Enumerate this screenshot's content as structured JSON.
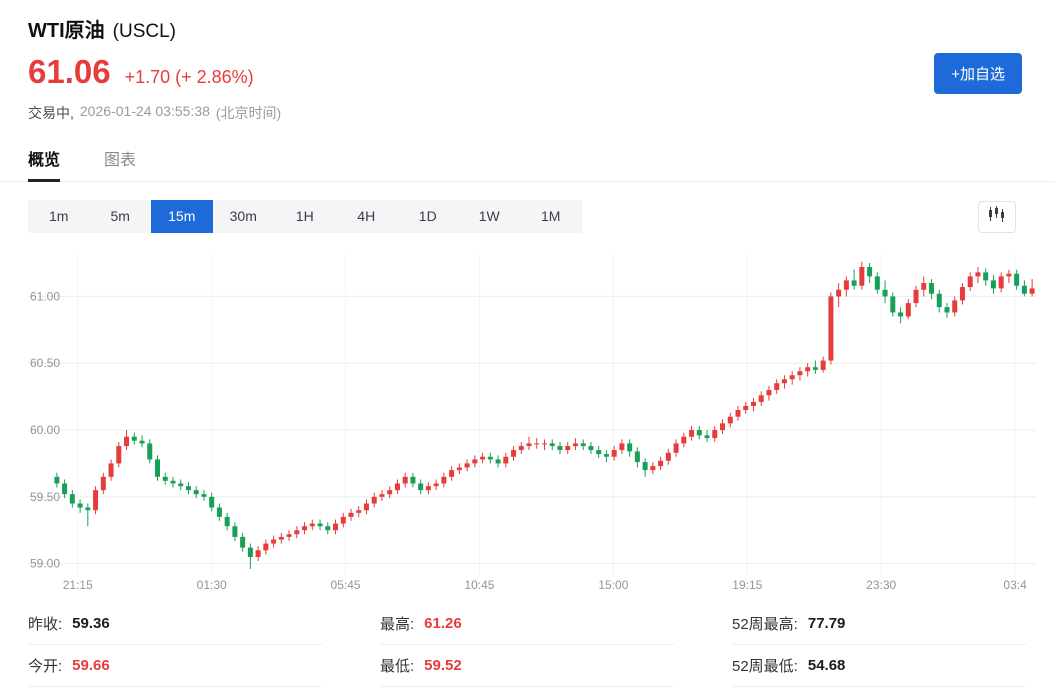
{
  "header": {
    "title": "WTI原油",
    "symbol": "(USCL)",
    "price": "61.06",
    "change": "+1.70 (+ 2.86%)",
    "status": "交易中,",
    "datetime": "2026-01-24 03:55:38",
    "timezone": "(北京时间)",
    "watchlist_button": "+加自选"
  },
  "tabs": [
    {
      "label": "概览",
      "active": true
    },
    {
      "label": "图表",
      "active": false
    }
  ],
  "intervals": {
    "items": [
      "1m",
      "5m",
      "15m",
      "30m",
      "1H",
      "4H",
      "1D",
      "1W",
      "1M"
    ],
    "active": "15m"
  },
  "colors": {
    "accent_blue": "#1f6ad9",
    "up_red": "#e63c3c",
    "down_green": "#18a058",
    "text_gray": "#8f959e"
  },
  "chart_data": {
    "type": "candlestick",
    "symbol": "WTI原油 (USCL)",
    "interval": "15m",
    "y_ticks": [
      59.0,
      59.5,
      60.0,
      60.5,
      61.0
    ],
    "y_range": [
      58.9,
      61.31
    ],
    "grid": true,
    "up_color": "#e63c3c",
    "down_color": "#18a058",
    "x_labels": [
      {
        "label": "21:15",
        "index": 2.7
      },
      {
        "label": "01:30",
        "index": 20.0
      },
      {
        "label": "05:45",
        "index": 37.3
      },
      {
        "label": "10:45",
        "index": 54.6
      },
      {
        "label": "15:00",
        "index": 71.9
      },
      {
        "label": "19:15",
        "index": 89.2
      },
      {
        "label": "23:30",
        "index": 106.5
      },
      {
        "label": "03:4",
        "index": 123.8
      }
    ],
    "candles": [
      [
        59.65,
        59.68,
        59.57,
        59.6
      ],
      [
        59.6,
        59.63,
        59.49,
        59.52
      ],
      [
        59.52,
        59.55,
        59.42,
        59.45
      ],
      [
        59.45,
        59.48,
        59.38,
        59.42
      ],
      [
        59.42,
        59.45,
        59.28,
        59.4
      ],
      [
        59.4,
        59.58,
        59.37,
        59.55
      ],
      [
        59.55,
        59.68,
        59.52,
        59.65
      ],
      [
        59.65,
        59.78,
        59.62,
        59.75
      ],
      [
        59.75,
        59.91,
        59.72,
        59.88
      ],
      [
        59.88,
        60.0,
        59.85,
        59.95
      ],
      [
        59.95,
        59.98,
        59.89,
        59.92
      ],
      [
        59.92,
        59.96,
        59.87,
        59.9
      ],
      [
        59.9,
        59.93,
        59.75,
        59.78
      ],
      [
        59.78,
        59.81,
        59.62,
        59.65
      ],
      [
        59.65,
        59.68,
        59.59,
        59.62
      ],
      [
        59.62,
        59.65,
        59.57,
        59.6
      ],
      [
        59.6,
        59.63,
        59.55,
        59.58
      ],
      [
        59.58,
        59.61,
        59.52,
        59.55
      ],
      [
        59.55,
        59.58,
        59.49,
        59.52
      ],
      [
        59.52,
        59.55,
        59.47,
        59.5
      ],
      [
        59.5,
        59.53,
        59.39,
        59.42
      ],
      [
        59.42,
        59.45,
        59.32,
        59.35
      ],
      [
        59.35,
        59.38,
        59.25,
        59.28
      ],
      [
        59.28,
        59.31,
        59.17,
        59.2
      ],
      [
        59.2,
        59.23,
        59.09,
        59.12
      ],
      [
        59.12,
        59.15,
        58.96,
        59.05
      ],
      [
        59.05,
        59.13,
        59.02,
        59.1
      ],
      [
        59.1,
        59.18,
        59.07,
        59.15
      ],
      [
        59.15,
        59.21,
        59.12,
        59.18
      ],
      [
        59.18,
        59.23,
        59.15,
        59.2
      ],
      [
        59.2,
        59.25,
        59.17,
        59.22
      ],
      [
        59.22,
        59.28,
        59.19,
        59.25
      ],
      [
        59.25,
        59.31,
        59.22,
        59.28
      ],
      [
        59.28,
        59.33,
        59.25,
        59.3
      ],
      [
        59.3,
        59.33,
        59.25,
        59.28
      ],
      [
        59.28,
        59.31,
        59.22,
        59.25
      ],
      [
        59.25,
        59.33,
        59.22,
        59.3
      ],
      [
        59.3,
        59.38,
        59.27,
        59.35
      ],
      [
        59.35,
        59.41,
        59.32,
        59.38
      ],
      [
        59.38,
        59.43,
        59.35,
        59.4
      ],
      [
        59.4,
        59.48,
        59.37,
        59.45
      ],
      [
        59.45,
        59.53,
        59.42,
        59.5
      ],
      [
        59.5,
        59.55,
        59.47,
        59.52
      ],
      [
        59.52,
        59.58,
        59.49,
        59.55
      ],
      [
        59.55,
        59.63,
        59.52,
        59.6
      ],
      [
        59.6,
        59.68,
        59.57,
        59.65
      ],
      [
        59.65,
        59.68,
        59.57,
        59.6
      ],
      [
        59.6,
        59.63,
        59.52,
        59.55
      ],
      [
        59.55,
        59.61,
        59.52,
        59.58
      ],
      [
        59.58,
        59.63,
        59.55,
        59.6
      ],
      [
        59.6,
        59.68,
        59.57,
        59.65
      ],
      [
        59.65,
        59.73,
        59.62,
        59.7
      ],
      [
        59.7,
        59.75,
        59.67,
        59.72
      ],
      [
        59.72,
        59.78,
        59.69,
        59.75
      ],
      [
        59.75,
        59.81,
        59.72,
        59.78
      ],
      [
        59.78,
        59.83,
        59.75,
        59.8
      ],
      [
        59.8,
        59.83,
        59.75,
        59.78
      ],
      [
        59.78,
        59.81,
        59.72,
        59.75
      ],
      [
        59.75,
        59.83,
        59.72,
        59.8
      ],
      [
        59.8,
        59.88,
        59.77,
        59.85
      ],
      [
        59.85,
        59.91,
        59.82,
        59.88
      ],
      [
        59.88,
        59.95,
        59.85,
        59.9
      ],
      [
        59.9,
        59.94,
        59.86,
        59.9
      ],
      [
        59.9,
        59.93,
        59.85,
        59.9
      ],
      [
        59.9,
        59.93,
        59.85,
        59.88
      ],
      [
        59.88,
        59.91,
        59.82,
        59.85
      ],
      [
        59.85,
        59.91,
        59.82,
        59.88
      ],
      [
        59.88,
        59.94,
        59.85,
        59.9
      ],
      [
        59.9,
        59.93,
        59.85,
        59.88
      ],
      [
        59.88,
        59.91,
        59.82,
        59.85
      ],
      [
        59.85,
        59.88,
        59.79,
        59.82
      ],
      [
        59.82,
        59.85,
        59.76,
        59.8
      ],
      [
        59.8,
        59.88,
        59.77,
        59.85
      ],
      [
        59.85,
        59.93,
        59.82,
        59.9
      ],
      [
        59.9,
        59.93,
        59.8,
        59.84
      ],
      [
        59.84,
        59.87,
        59.72,
        59.76
      ],
      [
        59.76,
        59.79,
        59.65,
        59.7
      ],
      [
        59.7,
        59.76,
        59.67,
        59.73
      ],
      [
        59.73,
        59.8,
        59.7,
        59.77
      ],
      [
        59.77,
        59.86,
        59.74,
        59.83
      ],
      [
        59.83,
        59.93,
        59.8,
        59.9
      ],
      [
        59.9,
        59.98,
        59.87,
        59.95
      ],
      [
        59.95,
        60.03,
        59.92,
        60.0
      ],
      [
        60.0,
        60.03,
        59.93,
        59.96
      ],
      [
        59.96,
        60.0,
        59.91,
        59.94
      ],
      [
        59.94,
        60.03,
        59.91,
        60.0
      ],
      [
        60.0,
        60.08,
        59.97,
        60.05
      ],
      [
        60.05,
        60.13,
        60.02,
        60.1
      ],
      [
        60.1,
        60.18,
        60.07,
        60.15
      ],
      [
        60.15,
        60.21,
        60.12,
        60.18
      ],
      [
        60.18,
        60.24,
        60.14,
        60.21
      ],
      [
        60.21,
        60.29,
        60.18,
        60.26
      ],
      [
        60.26,
        60.33,
        60.22,
        60.3
      ],
      [
        60.3,
        60.38,
        60.27,
        60.35
      ],
      [
        60.35,
        60.41,
        60.31,
        60.38
      ],
      [
        60.38,
        60.44,
        60.34,
        60.41
      ],
      [
        60.41,
        60.47,
        60.37,
        60.44
      ],
      [
        60.44,
        60.5,
        60.4,
        60.47
      ],
      [
        60.47,
        60.52,
        60.42,
        60.45
      ],
      [
        60.45,
        60.55,
        60.43,
        60.52
      ],
      [
        60.52,
        61.03,
        60.49,
        61.0
      ],
      [
        61.0,
        61.1,
        60.92,
        61.05
      ],
      [
        61.05,
        61.15,
        61.0,
        61.12
      ],
      [
        61.12,
        61.2,
        61.05,
        61.08
      ],
      [
        61.08,
        61.26,
        61.05,
        61.22
      ],
      [
        61.22,
        61.25,
        61.1,
        61.15
      ],
      [
        61.15,
        61.18,
        61.02,
        61.05
      ],
      [
        61.05,
        61.12,
        60.95,
        61.0
      ],
      [
        61.0,
        61.03,
        60.85,
        60.88
      ],
      [
        60.88,
        60.92,
        60.8,
        60.85
      ],
      [
        60.85,
        60.98,
        60.83,
        60.95
      ],
      [
        60.95,
        61.08,
        60.92,
        61.05
      ],
      [
        61.05,
        61.15,
        61.0,
        61.1
      ],
      [
        61.1,
        61.13,
        60.98,
        61.02
      ],
      [
        61.02,
        61.05,
        60.88,
        60.92
      ],
      [
        60.92,
        60.95,
        60.84,
        60.88
      ],
      [
        60.88,
        61.0,
        60.85,
        60.97
      ],
      [
        60.97,
        61.1,
        60.94,
        61.07
      ],
      [
        61.07,
        61.18,
        61.04,
        61.15
      ],
      [
        61.15,
        61.22,
        61.1,
        61.18
      ],
      [
        61.18,
        61.21,
        61.08,
        61.12
      ],
      [
        61.12,
        61.16,
        61.02,
        61.06
      ],
      [
        61.06,
        61.18,
        61.03,
        61.15
      ],
      [
        61.15,
        61.2,
        61.1,
        61.17
      ],
      [
        61.17,
        61.2,
        61.05,
        61.08
      ],
      [
        61.08,
        61.12,
        61.0,
        61.02
      ],
      [
        61.02,
        61.13,
        61.0,
        61.06
      ]
    ]
  },
  "stats": {
    "prev_close": {
      "label": "昨收:",
      "value": "59.36",
      "value_color": "#1c1c1e"
    },
    "open": {
      "label": "今开:",
      "value": "59.66",
      "value_color": "#e63c3c"
    },
    "high": {
      "label": "最高:",
      "value": "61.26",
      "value_color": "#e63c3c"
    },
    "low": {
      "label": "最低:",
      "value": "59.52",
      "value_color": "#e63c3c"
    },
    "high_52w": {
      "label": "52周最高:",
      "value": "77.79",
      "value_color": "#1c1c1e"
    },
    "low_52w": {
      "label": "52周最低:",
      "value": "54.68",
      "value_color": "#1c1c1e"
    }
  }
}
